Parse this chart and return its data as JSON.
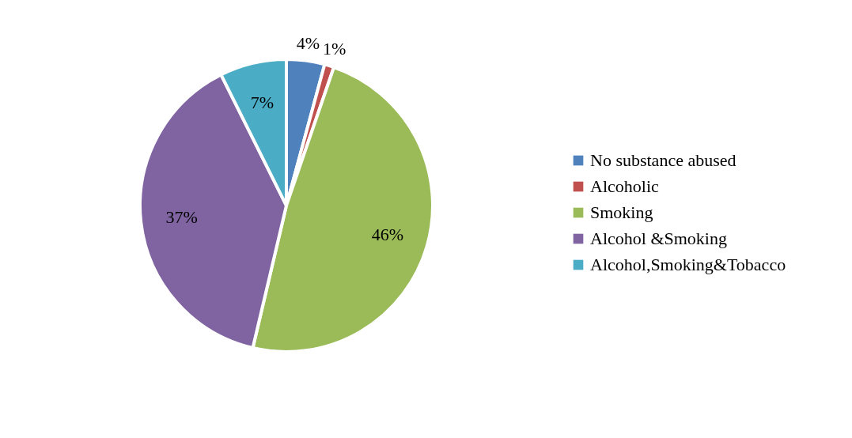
{
  "chart_data": {
    "type": "pie",
    "categories": [
      "No substance abused",
      "Alcoholic",
      " Smoking",
      "Alcohol &Smoking",
      "Alcohol,Smoking&Tobacco"
    ],
    "values": [
      4,
      1,
      46,
      37,
      7
    ],
    "colors": [
      "#4f81bd",
      "#c0504d",
      "#9bbb59",
      "#8064a2",
      "#4bacc6"
    ],
    "value_labels": [
      "4%",
      "1%",
      "46%",
      "37%",
      "7%"
    ],
    "legend": "right"
  }
}
